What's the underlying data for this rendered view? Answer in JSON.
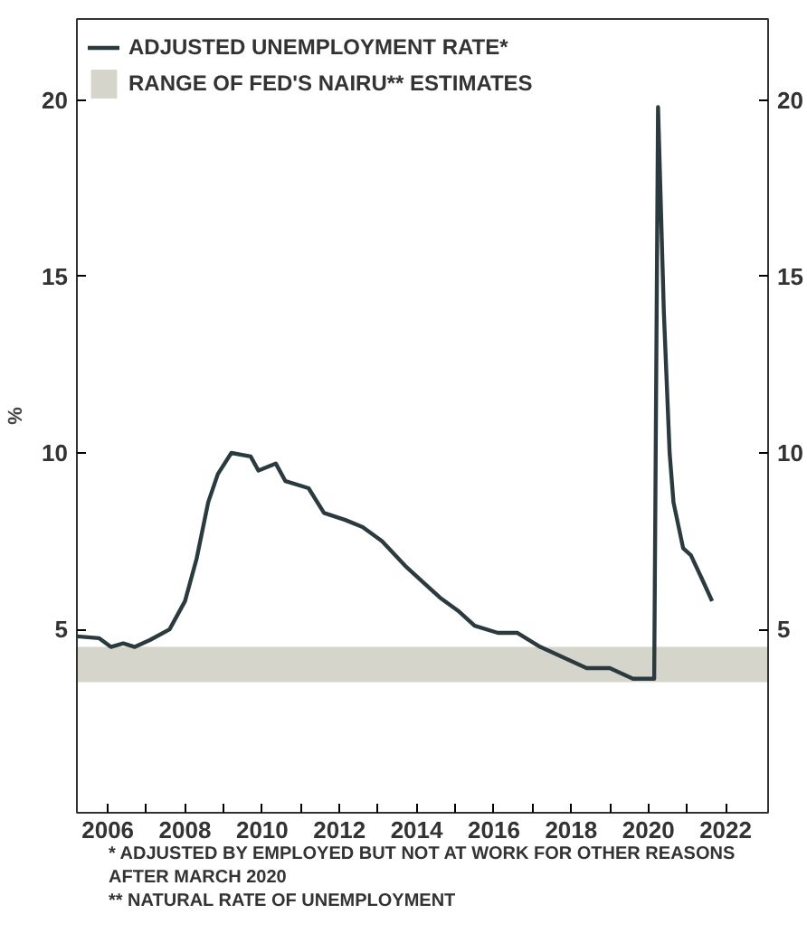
{
  "chart_data": {
    "type": "line",
    "ylabel": "%",
    "x": [
      2005.2,
      2005.77,
      2006.08,
      2006.4,
      2006.7,
      2007.1,
      2007.6,
      2008.0,
      2008.3,
      2008.6,
      2008.85,
      2009.2,
      2009.7,
      2009.9,
      2010.35,
      2010.6,
      2011.2,
      2011.6,
      2012.15,
      2012.6,
      2013.1,
      2013.7,
      2014.2,
      2014.6,
      2015.1,
      2015.5,
      2016.1,
      2016.6,
      2017.2,
      2017.8,
      2018.4,
      2019.0,
      2019.6,
      2020.15,
      2020.25,
      2020.4,
      2020.55,
      2020.65,
      2020.9,
      2021.1,
      2021.4,
      2021.65
    ],
    "series": [
      {
        "name": "ADJUSTED UNEMPLOYMENT RATE*",
        "color": "#2b3a3f",
        "values": [
          4.8,
          4.75,
          4.5,
          4.6,
          4.5,
          4.7,
          5.0,
          5.8,
          7.0,
          8.6,
          9.4,
          10.0,
          9.9,
          9.5,
          9.7,
          9.2,
          9.0,
          8.3,
          8.1,
          7.9,
          7.5,
          6.8,
          6.3,
          5.9,
          5.5,
          5.1,
          4.9,
          4.9,
          4.5,
          4.2,
          3.9,
          3.9,
          3.6,
          3.6,
          19.8,
          14.0,
          10.0,
          8.6,
          7.3,
          7.1,
          6.4,
          5.8
        ]
      }
    ],
    "bands": [
      {
        "axis": "y",
        "from": 3.5,
        "to": 4.5,
        "label": "RANGE OF FED'S NAIRU** ESTIMATES",
        "color": "#d5d5cb"
      }
    ],
    "xlim": [
      2005.2,
      2023.1
    ],
    "xticks": [
      2006,
      {
        "value": 2007,
        "label": null
      },
      2008,
      {
        "value": 2009,
        "label": null
      },
      2010,
      {
        "value": 2011,
        "label": null
      },
      2012,
      {
        "value": 2013,
        "label": null
      },
      2014,
      {
        "value": 2015,
        "label": null
      },
      2016,
      {
        "value": 2017,
        "label": null
      },
      2018,
      {
        "value": 2019,
        "label": null
      },
      2020,
      {
        "value": 2021,
        "label": null
      },
      2022
    ],
    "ylim": [
      -0.2,
      22.3
    ],
    "yticks": [
      5,
      10,
      15,
      20
    ],
    "y2lim": [
      -0.2,
      22.3
    ],
    "y2ticks": [
      5,
      10,
      15,
      20
    ],
    "legend": "top left",
    "grid": false,
    "line_style": "solid",
    "annotations": [
      "* ADJUSTED BY EMPLOYED BUT NOT AT WORK FOR OTHER REASONS AFTER MARCH 2020",
      "** NATURAL RATE OF UNEMPLOYMENT"
    ]
  }
}
